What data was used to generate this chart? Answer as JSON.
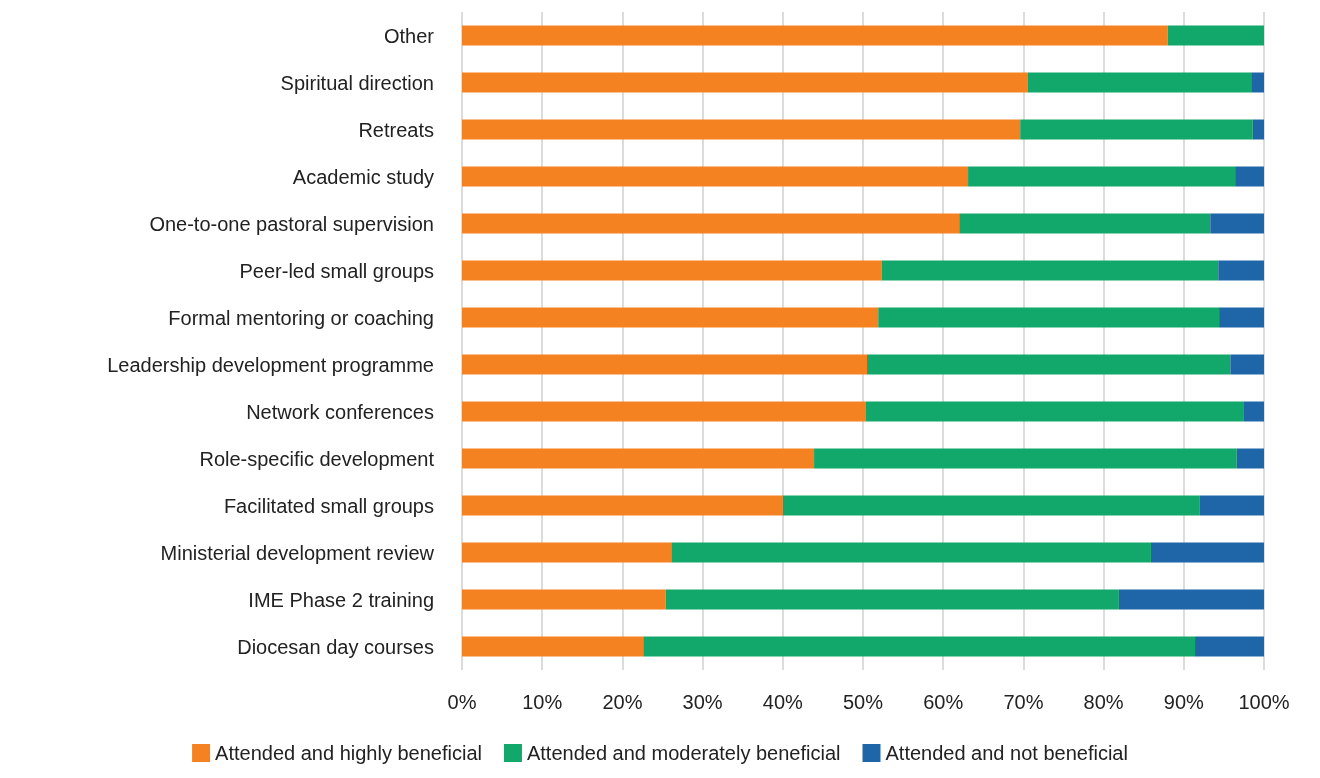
{
  "chart_data": {
    "type": "bar",
    "orientation": "horizontal",
    "stacked": true,
    "categories": [
      "Other",
      "Spiritual direction",
      "Retreats",
      "Academic study",
      "One-to-one pastoral supervision",
      "Peer-led small groups",
      "Formal mentoring or coaching",
      "Leadership development programme",
      "Network conferences",
      "Role-specific development",
      "Facilitated small groups",
      "Ministerial development review",
      "IME Phase 2 training",
      "Diocesan day courses"
    ],
    "series": [
      {
        "name": "Attended and highly beneficial",
        "color": "#f58220",
        "values": [
          88.0,
          70.5,
          69.6,
          63.1,
          62.0,
          52.3,
          51.9,
          50.5,
          50.3,
          43.9,
          40.0,
          26.1,
          25.4,
          22.6
        ]
      },
      {
        "name": "Attended and moderately beneficial",
        "color": "#13a86b",
        "values": [
          12.0,
          27.9,
          29.0,
          33.3,
          31.3,
          42.0,
          42.5,
          45.3,
          47.2,
          52.7,
          52.0,
          59.8,
          56.5,
          68.8
        ]
      },
      {
        "name": "Attended and not beneficial",
        "color": "#1f66a8",
        "values": [
          0,
          1.6,
          1.4,
          3.6,
          6.7,
          5.7,
          5.6,
          4.2,
          2.5,
          3.4,
          8.0,
          14.1,
          18.1,
          8.6
        ]
      }
    ],
    "xlim": [
      0,
      100
    ],
    "xticks": [
      {
        "value": 0,
        "label": "0%"
      },
      {
        "value": 10,
        "label": "10%"
      },
      {
        "value": 20,
        "label": "20%"
      },
      {
        "value": 30,
        "label": "30%"
      },
      {
        "value": 40,
        "label": "40%"
      },
      {
        "value": 50,
        "label": "50%"
      },
      {
        "value": 60,
        "label": "60%"
      },
      {
        "value": 70,
        "label": "70%"
      },
      {
        "value": 80,
        "label": "80%"
      },
      {
        "value": 90,
        "label": "90%"
      },
      {
        "value": 100,
        "label": "100%"
      }
    ],
    "grid": "x",
    "legend": "bottom"
  }
}
